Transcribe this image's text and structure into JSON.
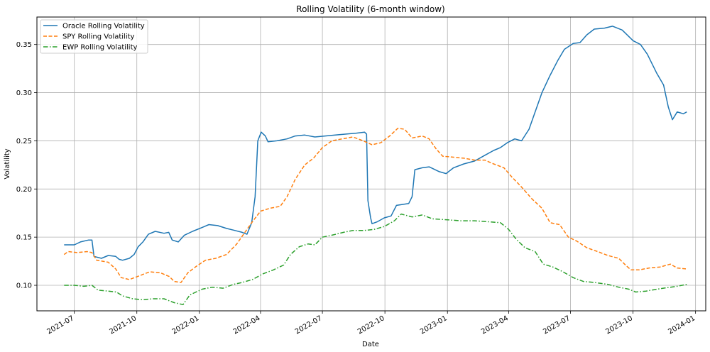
{
  "chart_data": {
    "type": "line",
    "title": "Rolling Volatility (6-month window)",
    "xlabel": "Date",
    "ylabel": "Volatility",
    "xlim": [
      "2021-05-07",
      "2024-01-16"
    ],
    "ylim": [
      0.0735,
      0.3785
    ],
    "xticks": [
      {
        "date": "2021-07-01",
        "label": "2021-07"
      },
      {
        "date": "2021-10-01",
        "label": "2021-10"
      },
      {
        "date": "2022-01-01",
        "label": "2022-01"
      },
      {
        "date": "2022-04-01",
        "label": "2022-04"
      },
      {
        "date": "2022-07-01",
        "label": "2022-07"
      },
      {
        "date": "2022-10-01",
        "label": "2022-10"
      },
      {
        "date": "2023-01-01",
        "label": "2023-01"
      },
      {
        "date": "2023-04-01",
        "label": "2023-04"
      },
      {
        "date": "2023-07-01",
        "label": "2023-07"
      },
      {
        "date": "2023-10-01",
        "label": "2023-10"
      },
      {
        "date": "2024-01-01",
        "label": "2024-01"
      }
    ],
    "yticks": [
      {
        "value": 0.1,
        "label": "0.10"
      },
      {
        "value": 0.15,
        "label": "0.15"
      },
      {
        "value": 0.2,
        "label": "0.20"
      },
      {
        "value": 0.25,
        "label": "0.25"
      },
      {
        "value": 0.3,
        "label": "0.30"
      },
      {
        "value": 0.35,
        "label": "0.35"
      }
    ],
    "grid": true,
    "legend_position": "upper-left",
    "series": [
      {
        "name": "Oracle Rolling Volatility",
        "color": "#1f77b4",
        "style": "solid",
        "points": [
          [
            "2021-06-16",
            0.142
          ],
          [
            "2021-07-01",
            0.142
          ],
          [
            "2021-07-10",
            0.145
          ],
          [
            "2021-07-22",
            0.147
          ],
          [
            "2021-07-27",
            0.147
          ],
          [
            "2021-07-30",
            0.13
          ],
          [
            "2021-08-10",
            0.128
          ],
          [
            "2021-08-20",
            0.131
          ],
          [
            "2021-08-31",
            0.13
          ],
          [
            "2021-09-05",
            0.127
          ],
          [
            "2021-09-10",
            0.126
          ],
          [
            "2021-09-20",
            0.128
          ],
          [
            "2021-09-27",
            0.132
          ],
          [
            "2021-10-03",
            0.14
          ],
          [
            "2021-10-10",
            0.145
          ],
          [
            "2021-10-18",
            0.153
          ],
          [
            "2021-10-28",
            0.156
          ],
          [
            "2021-11-10",
            0.154
          ],
          [
            "2021-11-17",
            0.155
          ],
          [
            "2021-11-22",
            0.147
          ],
          [
            "2021-12-01",
            0.145
          ],
          [
            "2021-12-10",
            0.152
          ],
          [
            "2021-12-22",
            0.156
          ],
          [
            "2022-01-05",
            0.16
          ],
          [
            "2022-01-15",
            0.163
          ],
          [
            "2022-01-28",
            0.162
          ],
          [
            "2022-02-10",
            0.159
          ],
          [
            "2022-02-22",
            0.157
          ],
          [
            "2022-03-05",
            0.155
          ],
          [
            "2022-03-12",
            0.153
          ],
          [
            "2022-03-19",
            0.165
          ],
          [
            "2022-03-24",
            0.192
          ],
          [
            "2022-03-28",
            0.25
          ],
          [
            "2022-04-02",
            0.259
          ],
          [
            "2022-04-08",
            0.255
          ],
          [
            "2022-04-12",
            0.249
          ],
          [
            "2022-04-25",
            0.25
          ],
          [
            "2022-05-10",
            0.252
          ],
          [
            "2022-05-22",
            0.255
          ],
          [
            "2022-06-05",
            0.256
          ],
          [
            "2022-06-20",
            0.254
          ],
          [
            "2022-07-05",
            0.255
          ],
          [
            "2022-07-20",
            0.256
          ],
          [
            "2022-08-05",
            0.257
          ],
          [
            "2022-08-20",
            0.258
          ],
          [
            "2022-09-01",
            0.259
          ],
          [
            "2022-09-04",
            0.257
          ],
          [
            "2022-09-06",
            0.188
          ],
          [
            "2022-09-10",
            0.17
          ],
          [
            "2022-09-12",
            0.164
          ],
          [
            "2022-09-20",
            0.166
          ],
          [
            "2022-09-30",
            0.17
          ],
          [
            "2022-10-10",
            0.172
          ],
          [
            "2022-10-18",
            0.183
          ],
          [
            "2022-11-05",
            0.185
          ],
          [
            "2022-11-10",
            0.192
          ],
          [
            "2022-11-14",
            0.22
          ],
          [
            "2022-11-25",
            0.222
          ],
          [
            "2022-12-05",
            0.223
          ],
          [
            "2022-12-20",
            0.218
          ],
          [
            "2022-12-30",
            0.216
          ],
          [
            "2023-01-10",
            0.222
          ],
          [
            "2023-01-25",
            0.226
          ],
          [
            "2023-02-10",
            0.229
          ],
          [
            "2023-02-25",
            0.235
          ],
          [
            "2023-03-10",
            0.24
          ],
          [
            "2023-03-20",
            0.243
          ],
          [
            "2023-03-30",
            0.248
          ],
          [
            "2023-04-10",
            0.252
          ],
          [
            "2023-04-20",
            0.25
          ],
          [
            "2023-05-01",
            0.262
          ],
          [
            "2023-05-10",
            0.28
          ],
          [
            "2023-05-20",
            0.3
          ],
          [
            "2023-06-01",
            0.318
          ],
          [
            "2023-06-12",
            0.333
          ],
          [
            "2023-06-22",
            0.345
          ],
          [
            "2023-07-05",
            0.351
          ],
          [
            "2023-07-15",
            0.352
          ],
          [
            "2023-07-25",
            0.36
          ],
          [
            "2023-08-05",
            0.366
          ],
          [
            "2023-08-20",
            0.367
          ],
          [
            "2023-09-01",
            0.369
          ],
          [
            "2023-09-15",
            0.365
          ],
          [
            "2023-10-01",
            0.354
          ],
          [
            "2023-10-12",
            0.35
          ],
          [
            "2023-10-22",
            0.34
          ],
          [
            "2023-11-05",
            0.32
          ],
          [
            "2023-11-15",
            0.308
          ],
          [
            "2023-11-22",
            0.285
          ],
          [
            "2023-11-28",
            0.272
          ],
          [
            "2023-12-05",
            0.28
          ],
          [
            "2023-12-10",
            0.279
          ],
          [
            "2023-12-14",
            0.278
          ],
          [
            "2023-12-19",
            0.28
          ]
        ]
      },
      {
        "name": "SPY Rolling Volatility",
        "color": "#ff7f0e",
        "style": "dashed",
        "points": [
          [
            "2021-06-16",
            0.132
          ],
          [
            "2021-06-22",
            0.135
          ],
          [
            "2021-07-05",
            0.134
          ],
          [
            "2021-07-20",
            0.135
          ],
          [
            "2021-07-27",
            0.134
          ],
          [
            "2021-08-03",
            0.126
          ],
          [
            "2021-08-20",
            0.124
          ],
          [
            "2021-08-31",
            0.117
          ],
          [
            "2021-09-08",
            0.108
          ],
          [
            "2021-09-20",
            0.106
          ],
          [
            "2021-10-05",
            0.11
          ],
          [
            "2021-10-20",
            0.114
          ],
          [
            "2021-11-05",
            0.113
          ],
          [
            "2021-11-18",
            0.109
          ],
          [
            "2021-11-25",
            0.104
          ],
          [
            "2021-12-05",
            0.103
          ],
          [
            "2021-12-15",
            0.113
          ],
          [
            "2021-12-28",
            0.12
          ],
          [
            "2022-01-10",
            0.126
          ],
          [
            "2022-01-25",
            0.128
          ],
          [
            "2022-02-10",
            0.132
          ],
          [
            "2022-02-25",
            0.143
          ],
          [
            "2022-03-10",
            0.156
          ],
          [
            "2022-03-20",
            0.166
          ],
          [
            "2022-04-01",
            0.177
          ],
          [
            "2022-04-15",
            0.18
          ],
          [
            "2022-04-30",
            0.182
          ],
          [
            "2022-05-10",
            0.192
          ],
          [
            "2022-05-22",
            0.21
          ],
          [
            "2022-06-05",
            0.225
          ],
          [
            "2022-06-18",
            0.232
          ],
          [
            "2022-07-01",
            0.243
          ],
          [
            "2022-07-15",
            0.25
          ],
          [
            "2022-07-30",
            0.252
          ],
          [
            "2022-08-15",
            0.254
          ],
          [
            "2022-08-30",
            0.25
          ],
          [
            "2022-09-12",
            0.246
          ],
          [
            "2022-09-25",
            0.248
          ],
          [
            "2022-10-08",
            0.255
          ],
          [
            "2022-10-20",
            0.263
          ],
          [
            "2022-10-30",
            0.262
          ],
          [
            "2022-11-10",
            0.253
          ],
          [
            "2022-11-25",
            0.255
          ],
          [
            "2022-12-05",
            0.252
          ],
          [
            "2022-12-15",
            0.242
          ],
          [
            "2022-12-25",
            0.234
          ],
          [
            "2023-01-10",
            0.233
          ],
          [
            "2023-01-25",
            0.232
          ],
          [
            "2023-02-10",
            0.23
          ],
          [
            "2023-02-25",
            0.23
          ],
          [
            "2023-03-10",
            0.226
          ],
          [
            "2023-03-25",
            0.222
          ],
          [
            "2023-04-05",
            0.213
          ],
          [
            "2023-04-20",
            0.202
          ],
          [
            "2023-05-05",
            0.19
          ],
          [
            "2023-05-20",
            0.18
          ],
          [
            "2023-06-01",
            0.165
          ],
          [
            "2023-06-15",
            0.163
          ],
          [
            "2023-06-28",
            0.15
          ],
          [
            "2023-07-10",
            0.146
          ],
          [
            "2023-07-25",
            0.139
          ],
          [
            "2023-08-10",
            0.135
          ],
          [
            "2023-08-25",
            0.131
          ],
          [
            "2023-09-10",
            0.128
          ],
          [
            "2023-09-20",
            0.121
          ],
          [
            "2023-09-28",
            0.116
          ],
          [
            "2023-10-10",
            0.116
          ],
          [
            "2023-10-25",
            0.118
          ],
          [
            "2023-11-10",
            0.119
          ],
          [
            "2023-11-25",
            0.122
          ],
          [
            "2023-12-05",
            0.118
          ],
          [
            "2023-12-19",
            0.117
          ]
        ]
      },
      {
        "name": "EWP Rolling Volatility",
        "color": "#2ca02c",
        "style": "dashdot",
        "points": [
          [
            "2021-06-16",
            0.1
          ],
          [
            "2021-07-01",
            0.1
          ],
          [
            "2021-07-15",
            0.099
          ],
          [
            "2021-07-27",
            0.1
          ],
          [
            "2021-08-05",
            0.095
          ],
          [
            "2021-08-20",
            0.094
          ],
          [
            "2021-09-01",
            0.093
          ],
          [
            "2021-09-10",
            0.089
          ],
          [
            "2021-09-25",
            0.086
          ],
          [
            "2021-10-10",
            0.085
          ],
          [
            "2021-10-25",
            0.086
          ],
          [
            "2021-11-10",
            0.086
          ],
          [
            "2021-11-25",
            0.082
          ],
          [
            "2021-12-08",
            0.08
          ],
          [
            "2021-12-18",
            0.09
          ],
          [
            "2022-01-05",
            0.096
          ],
          [
            "2022-01-20",
            0.098
          ],
          [
            "2022-02-05",
            0.097
          ],
          [
            "2022-02-20",
            0.101
          ],
          [
            "2022-03-05",
            0.103
          ],
          [
            "2022-03-20",
            0.106
          ],
          [
            "2022-04-05",
            0.112
          ],
          [
            "2022-04-20",
            0.116
          ],
          [
            "2022-05-05",
            0.121
          ],
          [
            "2022-05-15",
            0.132
          ],
          [
            "2022-05-28",
            0.14
          ],
          [
            "2022-06-10",
            0.143
          ],
          [
            "2022-06-20",
            0.142
          ],
          [
            "2022-07-01",
            0.15
          ],
          [
            "2022-07-15",
            0.152
          ],
          [
            "2022-08-01",
            0.155
          ],
          [
            "2022-08-15",
            0.157
          ],
          [
            "2022-09-01",
            0.157
          ],
          [
            "2022-09-15",
            0.158
          ],
          [
            "2022-09-30",
            0.161
          ],
          [
            "2022-10-15",
            0.167
          ],
          [
            "2022-10-25",
            0.174
          ],
          [
            "2022-11-10",
            0.171
          ],
          [
            "2022-11-25",
            0.173
          ],
          [
            "2022-12-10",
            0.169
          ],
          [
            "2023-01-01",
            0.168
          ],
          [
            "2023-01-20",
            0.167
          ],
          [
            "2023-02-10",
            0.167
          ],
          [
            "2023-03-01",
            0.166
          ],
          [
            "2023-03-20",
            0.165
          ],
          [
            "2023-04-01",
            0.158
          ],
          [
            "2023-04-12",
            0.148
          ],
          [
            "2023-04-25",
            0.139
          ],
          [
            "2023-05-10",
            0.135
          ],
          [
            "2023-05-22",
            0.122
          ],
          [
            "2023-06-05",
            0.119
          ],
          [
            "2023-06-20",
            0.114
          ],
          [
            "2023-07-05",
            0.108
          ],
          [
            "2023-07-20",
            0.104
          ],
          [
            "2023-08-05",
            0.103
          ],
          [
            "2023-08-25",
            0.101
          ],
          [
            "2023-09-10",
            0.098
          ],
          [
            "2023-09-25",
            0.096
          ],
          [
            "2023-10-05",
            0.093
          ],
          [
            "2023-10-20",
            0.094
          ],
          [
            "2023-11-05",
            0.096
          ],
          [
            "2023-11-25",
            0.098
          ],
          [
            "2023-12-05",
            0.099
          ],
          [
            "2023-12-19",
            0.101
          ]
        ]
      }
    ]
  }
}
